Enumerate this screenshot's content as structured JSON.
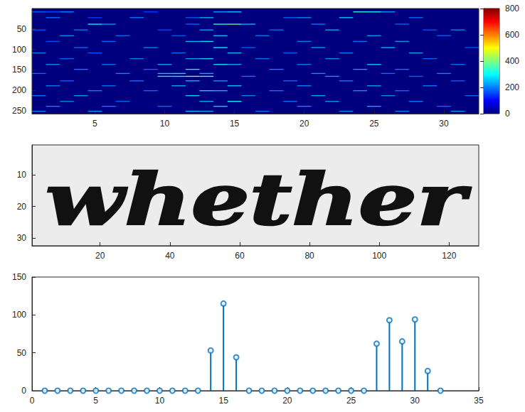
{
  "chart_data": [
    {
      "type": "heatmap",
      "xlim": [
        0.5,
        32.5
      ],
      "xticks": [
        5,
        10,
        15,
        20,
        25,
        30
      ],
      "ylim": [
        0.5,
        256.5
      ],
      "yticks": [
        50,
        100,
        150,
        200,
        250
      ],
      "color_range": [
        0,
        800
      ],
      "color_ticks": [
        0,
        200,
        400,
        600,
        800
      ],
      "cells": [
        [
          1,
          8,
          180
        ],
        [
          2,
          8,
          160
        ],
        [
          3,
          8,
          210
        ],
        [
          9,
          8,
          150
        ],
        [
          14,
          8,
          230
        ],
        [
          15,
          8,
          260
        ],
        [
          24,
          8,
          330
        ],
        [
          25,
          8,
          300
        ],
        [
          26,
          8,
          220
        ],
        [
          2,
          22,
          190
        ],
        [
          5,
          22,
          150
        ],
        [
          8,
          22,
          200
        ],
        [
          12,
          22,
          170
        ],
        [
          13,
          22,
          240
        ],
        [
          19,
          22,
          180
        ],
        [
          20,
          22,
          210
        ],
        [
          23,
          22,
          260
        ],
        [
          28,
          22,
          190
        ],
        [
          5,
          38,
          300
        ],
        [
          6,
          38,
          220
        ],
        [
          12,
          38,
          180
        ],
        [
          14,
          38,
          350
        ],
        [
          15,
          38,
          380
        ],
        [
          16,
          38,
          250
        ],
        [
          21,
          38,
          200
        ],
        [
          27,
          38,
          180
        ],
        [
          1,
          52,
          170
        ],
        [
          4,
          52,
          200
        ],
        [
          10,
          52,
          160
        ],
        [
          13,
          52,
          230
        ],
        [
          18,
          52,
          190
        ],
        [
          22,
          52,
          240
        ],
        [
          29,
          52,
          170
        ],
        [
          31,
          52,
          210
        ],
        [
          3,
          66,
          220
        ],
        [
          7,
          66,
          190
        ],
        [
          11,
          66,
          170
        ],
        [
          14,
          66,
          260
        ],
        [
          17,
          66,
          200
        ],
        [
          25,
          66,
          230
        ],
        [
          30,
          66,
          180
        ],
        [
          2,
          80,
          160
        ],
        [
          6,
          80,
          180
        ],
        [
          12,
          80,
          240
        ],
        [
          13,
          80,
          280
        ],
        [
          20,
          80,
          200
        ],
        [
          24,
          80,
          190
        ],
        [
          27,
          80,
          220
        ],
        [
          4,
          95,
          190
        ],
        [
          9,
          95,
          210
        ],
        [
          14,
          95,
          300
        ],
        [
          16,
          95,
          180
        ],
        [
          21,
          95,
          230
        ],
        [
          26,
          95,
          250
        ],
        [
          32,
          95,
          170
        ],
        [
          1,
          108,
          200
        ],
        [
          5,
          108,
          170
        ],
        [
          11,
          108,
          190
        ],
        [
          15,
          108,
          250
        ],
        [
          19,
          108,
          180
        ],
        [
          23,
          108,
          200
        ],
        [
          28,
          108,
          230
        ],
        [
          3,
          122,
          180
        ],
        [
          8,
          122,
          200
        ],
        [
          12,
          122,
          220
        ],
        [
          13,
          122,
          260
        ],
        [
          17,
          122,
          190
        ],
        [
          22,
          122,
          210
        ],
        [
          29,
          122,
          180
        ],
        [
          2,
          136,
          210
        ],
        [
          6,
          136,
          190
        ],
        [
          10,
          136,
          230
        ],
        [
          14,
          136,
          280
        ],
        [
          15,
          136,
          240
        ],
        [
          20,
          136,
          200
        ],
        [
          25,
          136,
          260
        ],
        [
          31,
          136,
          190
        ],
        [
          4,
          148,
          200
        ],
        [
          9,
          148,
          180
        ],
        [
          12,
          148,
          300
        ],
        [
          18,
          148,
          210
        ],
        [
          24,
          148,
          230
        ],
        [
          27,
          148,
          200
        ],
        [
          1,
          158,
          190
        ],
        [
          7,
          158,
          210
        ],
        [
          10,
          158,
          260
        ],
        [
          11,
          158,
          280
        ],
        [
          13,
          158,
          240
        ],
        [
          21,
          158,
          220
        ],
        [
          26,
          158,
          190
        ],
        [
          30,
          158,
          210
        ],
        [
          10,
          165,
          300
        ],
        [
          11,
          165,
          320
        ],
        [
          12,
          165,
          420
        ],
        [
          13,
          165,
          380
        ],
        [
          16,
          165,
          200
        ],
        [
          22,
          165,
          230
        ],
        [
          28,
          165,
          180
        ],
        [
          3,
          176,
          180
        ],
        [
          8,
          176,
          200
        ],
        [
          12,
          176,
          250
        ],
        [
          14,
          176,
          230
        ],
        [
          19,
          176,
          190
        ],
        [
          23,
          176,
          210
        ],
        [
          31,
          176,
          180
        ],
        [
          2,
          188,
          200
        ],
        [
          6,
          188,
          190
        ],
        [
          11,
          188,
          240
        ],
        [
          15,
          188,
          260
        ],
        [
          20,
          188,
          210
        ],
        [
          25,
          188,
          230
        ],
        [
          29,
          188,
          200
        ],
        [
          5,
          200,
          210
        ],
        [
          9,
          200,
          190
        ],
        [
          13,
          200,
          280
        ],
        [
          14,
          200,
          250
        ],
        [
          18,
          200,
          200
        ],
        [
          24,
          200,
          220
        ],
        [
          27,
          200,
          190
        ],
        [
          1,
          212,
          190
        ],
        [
          4,
          212,
          220
        ],
        [
          12,
          212,
          260
        ],
        [
          16,
          212,
          200
        ],
        [
          21,
          212,
          230
        ],
        [
          26,
          212,
          210
        ],
        [
          32,
          212,
          180
        ],
        [
          3,
          226,
          200
        ],
        [
          7,
          226,
          180
        ],
        [
          13,
          226,
          240
        ],
        [
          15,
          226,
          300
        ],
        [
          19,
          226,
          190
        ],
        [
          22,
          226,
          220
        ],
        [
          28,
          226,
          200
        ],
        [
          2,
          238,
          210
        ],
        [
          6,
          238,
          200
        ],
        [
          10,
          238,
          190
        ],
        [
          14,
          238,
          270
        ],
        [
          20,
          238,
          210
        ],
        [
          25,
          238,
          240
        ],
        [
          30,
          238,
          190
        ],
        [
          1,
          250,
          200
        ],
        [
          5,
          250,
          220
        ],
        [
          12,
          250,
          250
        ],
        [
          13,
          250,
          230
        ],
        [
          17,
          250,
          190
        ],
        [
          23,
          250,
          210
        ],
        [
          27,
          250,
          200
        ],
        [
          31,
          250,
          220
        ]
      ]
    },
    {
      "type": "image",
      "text": "whether",
      "xlim": [
        0.5,
        128.5
      ],
      "xticks": [
        20,
        40,
        60,
        80,
        100,
        120
      ],
      "ylim": [
        0.5,
        32.5
      ],
      "yticks": [
        10,
        20,
        30
      ]
    },
    {
      "type": "stem",
      "color": "#0072bd",
      "marker": "o",
      "x": [
        1,
        2,
        3,
        4,
        5,
        6,
        7,
        8,
        9,
        10,
        11,
        12,
        13,
        14,
        15,
        16,
        17,
        18,
        19,
        20,
        21,
        22,
        23,
        24,
        25,
        26,
        27,
        28,
        29,
        30,
        31,
        32
      ],
      "values": [
        0,
        0,
        0,
        0,
        0,
        0,
        0,
        0,
        0,
        0,
        0,
        0,
        0,
        53,
        115,
        44,
        0,
        0,
        0,
        0,
        0,
        0,
        0,
        0,
        0,
        0,
        62,
        93,
        65,
        94,
        26,
        0
      ],
      "xlim": [
        0,
        35
      ],
      "xticks": [
        0,
        5,
        10,
        15,
        20,
        25,
        30,
        35
      ],
      "ylim": [
        0,
        150
      ],
      "yticks": [
        0,
        50,
        100,
        150
      ]
    }
  ]
}
